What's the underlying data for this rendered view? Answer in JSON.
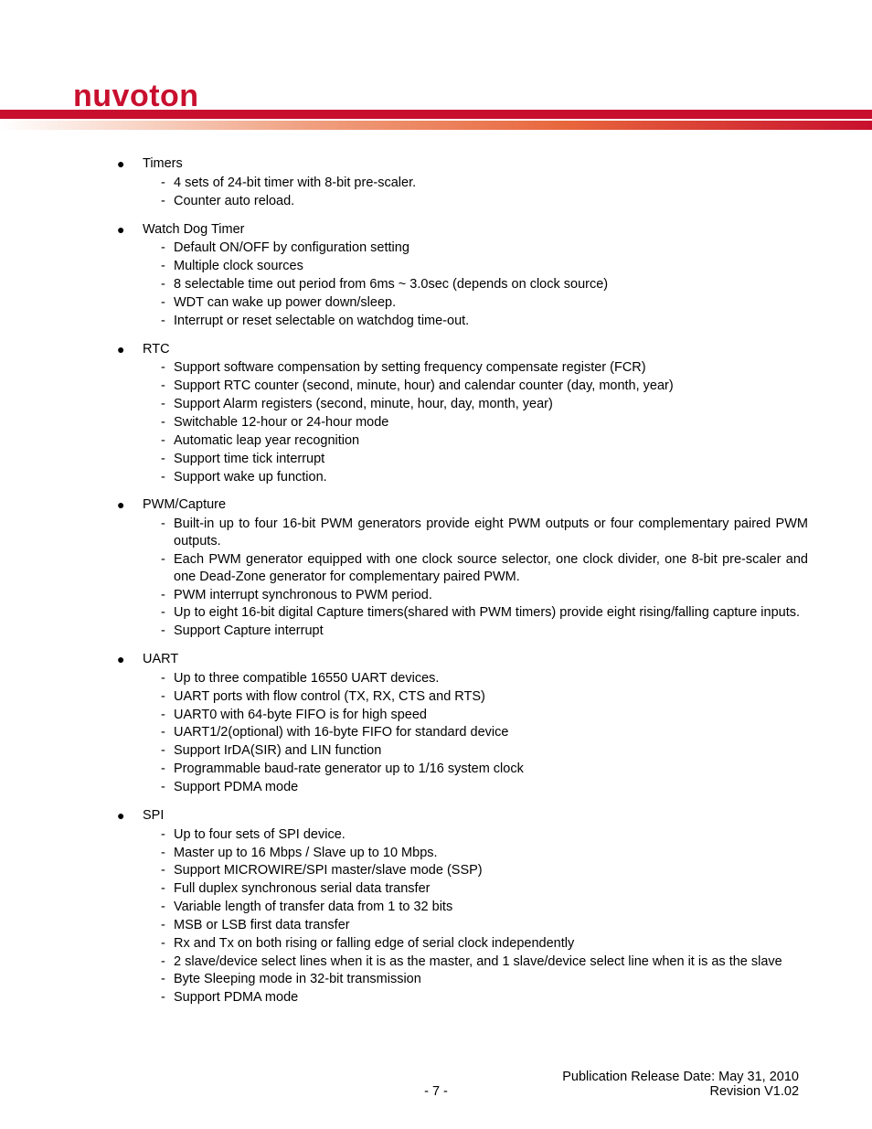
{
  "brand": {
    "name": "nuvoTon",
    "color": "#c8102e",
    "gradient_end": "#c8102e"
  },
  "sections": [
    {
      "title": "Timers",
      "items": [
        "4 sets of 24-bit timer with 8-bit pre-scaler.",
        "Counter auto reload."
      ]
    },
    {
      "title": "Watch Dog Timer",
      "items": [
        "Default ON/OFF by configuration setting",
        "Multiple clock sources",
        "8 selectable time out period from 6ms ~ 3.0sec (depends on clock source)",
        "WDT can wake up power down/sleep.",
        "Interrupt or reset selectable on watchdog time-out."
      ]
    },
    {
      "title": "RTC",
      "items": [
        "Support software compensation by setting frequency compensate register (FCR)",
        "Support RTC counter (second, minute, hour) and calendar counter (day, month, year)",
        "Support Alarm registers (second, minute, hour, day, month, year)",
        "Switchable 12-hour or 24-hour mode",
        "Automatic leap year recognition",
        "Support time tick interrupt",
        "Support wake up function."
      ]
    },
    {
      "title": "PWM/Capture",
      "items": [
        "Built-in up to four 16-bit PWM generators provide eight PWM outputs or four complementary paired PWM outputs.",
        "Each PWM generator equipped with one clock source selector, one clock divider, one 8-bit pre-scaler and one Dead-Zone generator for complementary paired PWM.",
        "PWM interrupt synchronous to PWM period.",
        "Up to eight 16-bit digital Capture timers(shared with PWM timers) provide eight rising/falling capture inputs.",
        "Support Capture interrupt"
      ]
    },
    {
      "title": "UART",
      "items": [
        "Up to three compatible 16550 UART devices.",
        "UART ports with flow control (TX, RX, CTS and RTS)",
        "UART0 with 64-byte FIFO is for high speed",
        "UART1/2(optional) with 16-byte FIFO for standard device",
        "Support IrDA(SIR) and LIN function",
        "Programmable baud-rate generator up to 1/16 system clock",
        "Support PDMA mode"
      ]
    },
    {
      "title": "SPI",
      "items": [
        "Up to four sets of SPI device.",
        "Master up to 16 Mbps / Slave up to 10 Mbps.",
        "Support MICROWIRE/SPI master/slave mode (SSP)",
        "Full duplex synchronous serial data transfer",
        "Variable length of transfer data from 1 to 32 bits",
        "MSB or LSB first data transfer",
        "Rx and Tx on both rising or falling edge of serial clock independently",
        "2 slave/device select lines when it is as the master, and 1 slave/device select line when it is as the slave",
        "Byte Sleeping mode in 32-bit transmission",
        "Support PDMA mode"
      ]
    }
  ],
  "footer": {
    "pub_date": "Publication Release Date: May 31, 2010",
    "page": "- 7 -",
    "revision": "Revision V1.02"
  }
}
